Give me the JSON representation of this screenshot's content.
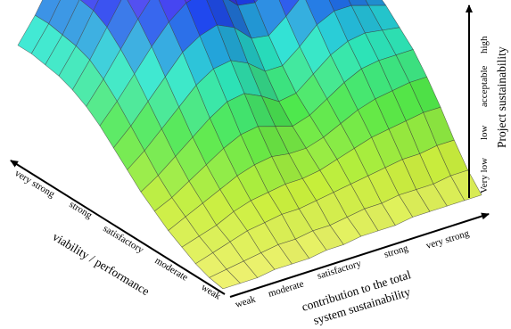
{
  "chart_data": {
    "type": "surface",
    "title": "",
    "x_axis": {
      "label_lines": [
        "contribution to the total",
        "system sustainability"
      ],
      "ticks": [
        "weak",
        "moderate",
        "satisfactory",
        "strong",
        "very strong"
      ]
    },
    "y_axis": {
      "label": "viability / performance",
      "ticks": [
        "weak",
        "moderate",
        "satisfactory",
        "strong",
        "very strong"
      ]
    },
    "z_axis": {
      "label": "Project sustainability",
      "ticks": [
        "Very low",
        "low",
        "acceptable",
        "high"
      ],
      "range": [
        0,
        1
      ]
    },
    "colormap": [
      "#f5f27a",
      "#c8ef3a",
      "#4fe84a",
      "#27e6d2",
      "#1f3cf0",
      "#8a2ef0",
      "#ff2ae6"
    ],
    "grid_size": [
      16,
      16
    ],
    "surface_rows": [
      [
        0.02,
        0.02,
        0.02,
        0.03,
        0.03,
        0.03,
        0.04,
        0.04,
        0.05,
        0.05,
        0.05,
        0.06,
        0.06,
        0.06,
        0.06,
        0.06
      ],
      [
        0.03,
        0.04,
        0.05,
        0.06,
        0.07,
        0.07,
        0.08,
        0.08,
        0.09,
        0.1,
        0.1,
        0.11,
        0.11,
        0.11,
        0.12,
        0.12
      ],
      [
        0.05,
        0.07,
        0.09,
        0.11,
        0.12,
        0.13,
        0.13,
        0.14,
        0.15,
        0.16,
        0.17,
        0.18,
        0.19,
        0.19,
        0.2,
        0.2
      ],
      [
        0.08,
        0.1,
        0.12,
        0.15,
        0.17,
        0.18,
        0.19,
        0.19,
        0.2,
        0.22,
        0.24,
        0.26,
        0.27,
        0.28,
        0.29,
        0.29
      ],
      [
        0.11,
        0.14,
        0.17,
        0.2,
        0.23,
        0.25,
        0.26,
        0.25,
        0.25,
        0.27,
        0.3,
        0.33,
        0.35,
        0.36,
        0.37,
        0.37
      ],
      [
        0.15,
        0.18,
        0.22,
        0.26,
        0.3,
        0.33,
        0.34,
        0.32,
        0.3,
        0.32,
        0.36,
        0.4,
        0.43,
        0.44,
        0.44,
        0.44
      ],
      [
        0.19,
        0.23,
        0.28,
        0.33,
        0.38,
        0.42,
        0.43,
        0.4,
        0.36,
        0.37,
        0.42,
        0.47,
        0.5,
        0.51,
        0.5,
        0.49
      ],
      [
        0.24,
        0.29,
        0.35,
        0.41,
        0.47,
        0.51,
        0.52,
        0.49,
        0.44,
        0.44,
        0.49,
        0.55,
        0.58,
        0.58,
        0.56,
        0.54
      ],
      [
        0.29,
        0.35,
        0.42,
        0.49,
        0.56,
        0.6,
        0.62,
        0.59,
        0.53,
        0.52,
        0.57,
        0.63,
        0.66,
        0.65,
        0.62,
        0.58
      ],
      [
        0.34,
        0.41,
        0.49,
        0.57,
        0.64,
        0.69,
        0.71,
        0.68,
        0.62,
        0.61,
        0.66,
        0.72,
        0.74,
        0.72,
        0.67,
        0.62
      ],
      [
        0.38,
        0.46,
        0.55,
        0.64,
        0.72,
        0.78,
        0.8,
        0.78,
        0.72,
        0.7,
        0.74,
        0.8,
        0.82,
        0.79,
        0.72,
        0.65
      ],
      [
        0.41,
        0.5,
        0.6,
        0.7,
        0.79,
        0.85,
        0.88,
        0.86,
        0.81,
        0.79,
        0.82,
        0.87,
        0.88,
        0.84,
        0.76,
        0.67
      ],
      [
        0.43,
        0.52,
        0.63,
        0.74,
        0.84,
        0.91,
        0.94,
        0.93,
        0.89,
        0.87,
        0.89,
        0.93,
        0.93,
        0.88,
        0.79,
        0.69
      ],
      [
        0.44,
        0.53,
        0.64,
        0.76,
        0.87,
        0.94,
        0.98,
        0.98,
        0.95,
        0.93,
        0.94,
        0.97,
        0.96,
        0.9,
        0.81,
        0.7
      ],
      [
        0.45,
        0.54,
        0.65,
        0.77,
        0.88,
        0.96,
        1.0,
        1.0,
        0.98,
        0.96,
        0.97,
        0.99,
        0.97,
        0.91,
        0.82,
        0.71
      ],
      [
        0.45,
        0.54,
        0.65,
        0.77,
        0.88,
        0.96,
        1.0,
        1.0,
        0.99,
        0.97,
        0.98,
        1.0,
        0.98,
        0.92,
        0.82,
        0.71
      ]
    ]
  }
}
